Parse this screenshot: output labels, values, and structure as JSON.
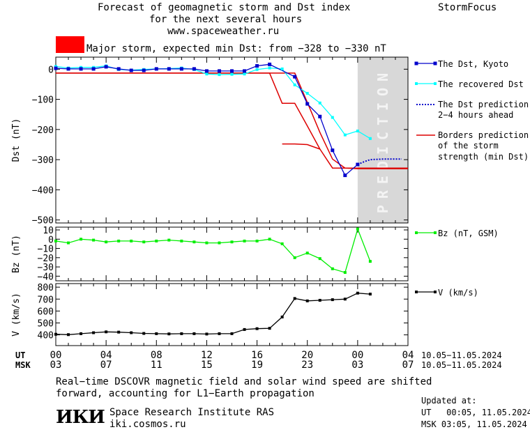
{
  "header": {
    "title_lines": [
      "Forecast of geomagnetic storm and Dst index",
      "for the next several hours",
      "www.spaceweather.ru"
    ],
    "brand": "StormFocus",
    "storm_color": "#ff0000",
    "storm_text": "Major storm, expected min Dst: from −328 to −330 nT"
  },
  "axes": {
    "dst_ylabel": "Dst (nT)",
    "bz_ylabel": "Bz (nT)",
    "v_ylabel": "V (km/s)",
    "dst_ticks": [
      "0",
      "−100",
      "−200",
      "−300",
      "−400",
      "−500"
    ],
    "bz_ticks": [
      "10",
      "0",
      "−10",
      "−20",
      "−30",
      "−40"
    ],
    "v_ticks": [
      "800",
      "700",
      "600",
      "500",
      "400"
    ],
    "ut_label": "UT",
    "msk_label": "MSK",
    "ut_ticks": [
      "00",
      "04",
      "08",
      "12",
      "16",
      "20",
      "00",
      "04"
    ],
    "msk_ticks": [
      "03",
      "07",
      "11",
      "15",
      "19",
      "23",
      "03",
      "07"
    ],
    "date_range_ut": "10.05−11.05.2024",
    "date_range_msk": "10.05−11.05.2024",
    "prediction_text": "PREDICTION"
  },
  "legend": {
    "dst": "The Dst, Kyoto",
    "recovered": "The recovered Dst",
    "prediction_1": "The Dst prediction",
    "prediction_2": "2−4 hours ahead",
    "borders_1": "Borders prediction",
    "borders_2": "of the storm",
    "borders_3": "strength (min Dst)",
    "bz": "Bz (nT, GSM)",
    "v": "V (km/s)"
  },
  "footer": {
    "note_1": "Real−time DSCOVR magnetic field and solar wind speed are shifted",
    "note_2": "forward, accounting for L1−Earth propagation",
    "logo_text": "ИКИ",
    "institute": "Space Research Institute RAS",
    "site": "iki.cosmos.ru",
    "updated_label": "Updated at:",
    "updated_ut": "UT   00:05, 11.05.2024",
    "updated_msk": "MSK 03:05, 11.05.2024"
  },
  "colors": {
    "dst": "#0000cc",
    "recovered": "#00ffff",
    "prediction": "#0000cc",
    "borders": "#dd0000",
    "bz": "#00ee00",
    "v": "#000000",
    "prediction_band": "#d8d8d8"
  },
  "chart_data": [
    {
      "type": "line",
      "name": "dst-panel",
      "ylabel": "Dst (nT)",
      "ylim": [
        -510,
        40
      ],
      "xlim": [
        0,
        28
      ],
      "series": [
        {
          "name": "The Dst, Kyoto",
          "x": [
            0,
            1,
            2,
            3,
            4,
            5,
            6,
            7,
            8,
            9,
            10,
            11,
            12,
            13,
            14,
            15,
            16,
            17,
            19,
            20,
            21,
            22,
            23,
            24
          ],
          "values": [
            3,
            1,
            1,
            1,
            8,
            1,
            -4,
            -4,
            1,
            1,
            1,
            1,
            -6,
            -6,
            -6,
            -6,
            11,
            16,
            -25,
            -115,
            -157,
            -269,
            -352,
            -316
          ]
        },
        {
          "name": "The recovered Dst",
          "x": [
            0,
            1,
            2,
            3,
            4,
            5,
            6,
            7,
            8,
            9,
            10,
            11,
            12,
            13,
            14,
            15,
            16,
            17,
            18,
            19,
            20,
            21,
            22,
            23,
            24,
            25
          ],
          "values": [
            9,
            4,
            6,
            6,
            11,
            -1,
            -3,
            -1,
            1,
            2,
            4,
            -1,
            -16,
            -18,
            -17,
            -16,
            -1,
            4,
            1,
            -52,
            -80,
            -112,
            -160,
            -218,
            -205,
            -230
          ]
        },
        {
          "name": "The Dst prediction 2−4 hours ahead",
          "x": [
            24,
            24.5,
            25,
            25.5,
            26,
            26.5,
            27,
            27.5
          ],
          "values": [
            -316,
            -307,
            -300,
            -299,
            -298,
            -298,
            -298,
            -298
          ]
        },
        {
          "name": "Borders prediction upper",
          "x": [
            0,
            17,
            18,
            19,
            20,
            21,
            22,
            23,
            24,
            28
          ],
          "values": [
            -13,
            -13,
            -113,
            -113,
            -188,
            -265,
            -328,
            -328,
            -328,
            -328
          ]
        },
        {
          "name": "Borders prediction lower",
          "x": [
            0,
            17,
            17.5,
            19,
            20,
            21,
            22,
            23,
            24,
            28
          ],
          "values": [
            -13,
            -13,
            -13,
            -13,
            -110,
            -210,
            -298,
            -328,
            -330,
            -330
          ]
        },
        {
          "name": "Borders prediction inner",
          "x": [
            18,
            19,
            20,
            21
          ],
          "values": [
            -248,
            -248,
            -250,
            -265
          ]
        }
      ],
      "prediction_band_x": [
        24,
        28
      ]
    },
    {
      "type": "line",
      "name": "bz-panel",
      "ylabel": "Bz (nT)",
      "ylim": [
        -45,
        13
      ],
      "xlim": [
        0,
        28
      ],
      "series": [
        {
          "name": "Bz (nT, GSM)",
          "x": [
            0,
            1,
            2,
            3,
            4,
            5,
            6,
            7,
            8,
            9,
            10,
            11,
            12,
            13,
            14,
            15,
            16,
            17,
            18,
            19,
            20,
            21,
            22,
            23,
            24,
            25
          ],
          "values": [
            -2,
            -4,
            0,
            -1,
            -3,
            -2,
            -2,
            -3,
            -2,
            -1,
            -2,
            -3,
            -4,
            -4,
            -3,
            -2,
            -2,
            0,
            -5,
            -20,
            -15,
            -21,
            -32,
            -36,
            11,
            -24
          ]
        }
      ]
    },
    {
      "type": "line",
      "name": "v-panel",
      "ylabel": "V (km/s)",
      "ylim": [
        310,
        830
      ],
      "xlim": [
        0,
        28
      ],
      "series": [
        {
          "name": "V (km/s)",
          "x": [
            0,
            1,
            2,
            3,
            4,
            5,
            6,
            7,
            8,
            9,
            10,
            11,
            12,
            13,
            14,
            15,
            16,
            17,
            18,
            19,
            20,
            21,
            22,
            23,
            24,
            25
          ],
          "values": [
            405,
            402,
            410,
            418,
            425,
            423,
            418,
            412,
            410,
            408,
            410,
            410,
            407,
            410,
            410,
            445,
            452,
            455,
            550,
            705,
            685,
            690,
            695,
            700,
            750,
            742
          ]
        }
      ]
    }
  ]
}
